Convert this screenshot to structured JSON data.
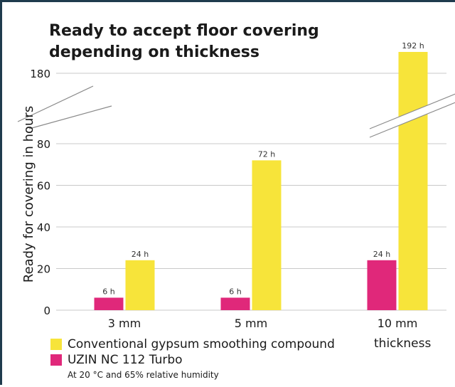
{
  "title_line1": "Ready to accept floor covering",
  "title_line2": "depending on thickness",
  "ylabel": "Ready for covering in hours",
  "xlabel": "thickness",
  "note": "At 20 °C and 65% relative humidity",
  "legend": [
    {
      "label": "Conventional gypsum smoothing compound",
      "color": "#f7e43a"
    },
    {
      "label": "UZIN NC 112 Turbo",
      "color": "#e0287a"
    }
  ],
  "chart_data": {
    "type": "bar",
    "categories": [
      "3 mm",
      "5 mm",
      "10 mm"
    ],
    "series": [
      {
        "name": "UZIN NC 112 Turbo",
        "color": "#e0287a",
        "values": [
          6,
          6,
          24
        ],
        "labels": [
          "6 h",
          "6 h",
          "24 h"
        ]
      },
      {
        "name": "Conventional gypsum smoothing compound",
        "color": "#f7e43a",
        "values": [
          24,
          72,
          192
        ],
        "labels": [
          "24 h",
          "72 h",
          "192 h"
        ]
      }
    ],
    "yticks": [
      0,
      20,
      40,
      60,
      80,
      180
    ],
    "axis_break": [
      90,
      170
    ],
    "ylim": [
      0,
      192
    ],
    "grid": true
  }
}
